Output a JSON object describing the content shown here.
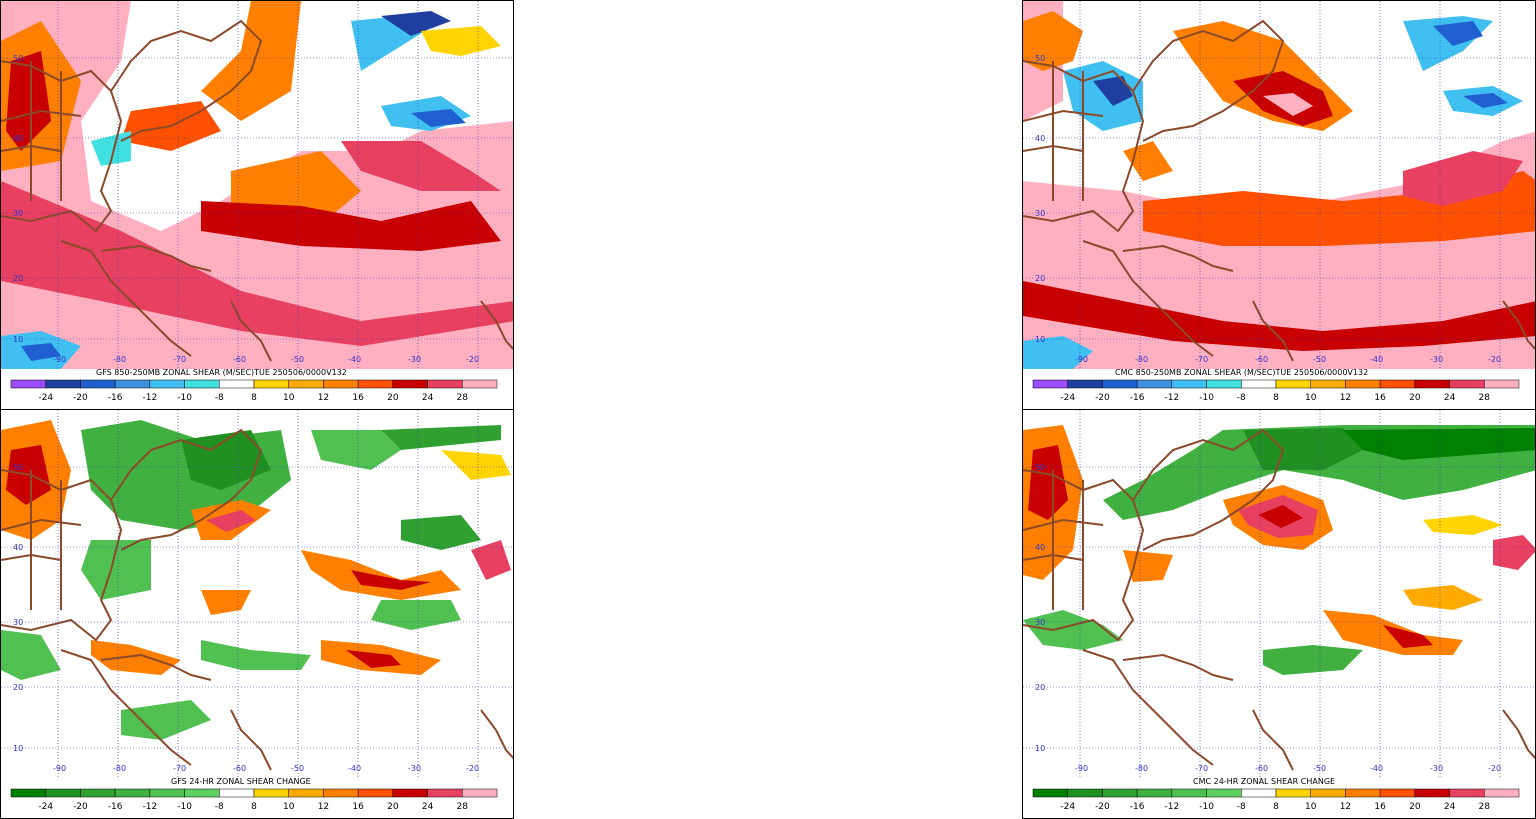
{
  "panels": [
    {
      "id": "gfs-shear",
      "title": "GFS 850-250MB ZONAL SHEAR (M/SEC)TUE 250506/0000V132",
      "lon_labels": [
        "-90",
        "-80",
        "-70",
        "-60",
        "-50",
        "-40",
        "-30",
        "-20"
      ],
      "lat_labels": [
        "50",
        "40",
        "30",
        "20",
        "10"
      ],
      "colorbar": {
        "labels": [
          "-24",
          "-20",
          "-16",
          "-12",
          "-10",
          "-8",
          "8",
          "10",
          "12",
          "16",
          "20",
          "24",
          "28"
        ],
        "colors": [
          "#9b4cff",
          "#1f3fa0",
          "#1f5fd0",
          "#3f8fe0",
          "#40c0f0",
          "#40e0e0",
          "#ffffff",
          "#ffd400",
          "#ffaa00",
          "#ff8000",
          "#ff5000",
          "#c80000",
          "#e84060",
          "#ffb0c0"
        ]
      }
    },
    {
      "id": "cmc-shear",
      "title": "CMC 850-250MB ZONAL SHEAR (M/SEC)TUE 250506/0000V132",
      "lon_labels": [
        "-90",
        "-80",
        "-70",
        "-60",
        "-50",
        "-40",
        "-30",
        "-20"
      ],
      "lat_labels": [
        "50",
        "40",
        "30",
        "20",
        "10"
      ],
      "colorbar": {
        "labels": [
          "-24",
          "-20",
          "-16",
          "-12",
          "-10",
          "-8",
          "8",
          "10",
          "12",
          "16",
          "20",
          "24",
          "28"
        ],
        "colors": [
          "#9b4cff",
          "#1f3fa0",
          "#1f5fd0",
          "#3f8fe0",
          "#40c0f0",
          "#40e0e0",
          "#ffffff",
          "#ffd400",
          "#ffaa00",
          "#ff8000",
          "#ff5000",
          "#c80000",
          "#e84060",
          "#ffb0c0"
        ]
      }
    },
    {
      "id": "gfs-change",
      "title": "GFS 24-HR ZONAL SHEAR CHANGE",
      "lon_labels": [
        "-90",
        "-80",
        "-70",
        "-60",
        "-50",
        "-40",
        "-30",
        "-20"
      ],
      "lat_labels": [
        "50",
        "40",
        "30",
        "20",
        "10"
      ],
      "colorbar": {
        "labels": [
          "-24",
          "-20",
          "-16",
          "-12",
          "-10",
          "-8",
          "8",
          "10",
          "12",
          "16",
          "20",
          "24",
          "28"
        ],
        "colors": [
          "#008000",
          "#209020",
          "#30a030",
          "#40b040",
          "#50c050",
          "#60d060",
          "#ffffff",
          "#ffd400",
          "#ffaa00",
          "#ff8000",
          "#ff5000",
          "#c80000",
          "#e84060",
          "#ffb0c0"
        ]
      }
    },
    {
      "id": "cmc-change",
      "title": "CMC 24-HR ZONAL SHEAR CHANGE",
      "lon_labels": [
        "-90",
        "-80",
        "-70",
        "-60",
        "-50",
        "-40",
        "-30",
        "-20"
      ],
      "lat_labels": [
        "50",
        "40",
        "30",
        "20",
        "10"
      ],
      "colorbar": {
        "labels": [
          "-24",
          "-20",
          "-16",
          "-12",
          "-10",
          "-8",
          "8",
          "10",
          "12",
          "16",
          "20",
          "24",
          "28"
        ],
        "colors": [
          "#008000",
          "#209020",
          "#30a030",
          "#40b040",
          "#50c050",
          "#60d060",
          "#ffffff",
          "#ffd400",
          "#ffaa00",
          "#ff8000",
          "#ff5000",
          "#c80000",
          "#e84060",
          "#ffb0c0"
        ]
      }
    }
  ],
  "colors": {
    "coast": "#8b4a2a",
    "grid": "#3333cc"
  }
}
